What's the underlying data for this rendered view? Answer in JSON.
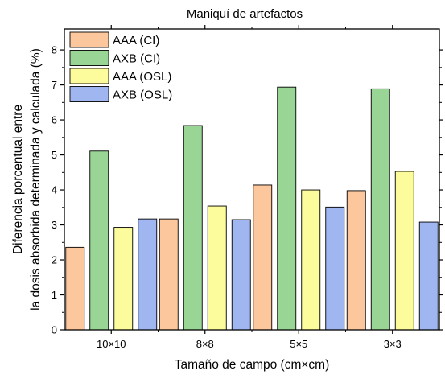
{
  "chart_data": {
    "type": "bar",
    "title": "Maniquí  de artefactos",
    "xlabel": "Tamaño de campo (cm×cm)",
    "ylabel": [
      "Diferencia porcentual entre",
      "la dosis absorbida determinada y calculada (%)"
    ],
    "categories": [
      "10×10",
      "8×8",
      "5×5",
      "3×3"
    ],
    "ylim": [
      0,
      8.6
    ],
    "yticks": [
      0,
      1,
      2,
      3,
      4,
      5,
      6,
      7,
      8
    ],
    "grid": false,
    "legend_position": "top-left",
    "series": [
      {
        "name": "AAA (CI)",
        "color": "#fcc79c",
        "values": [
          2.36,
          3.17,
          4.14,
          3.98
        ]
      },
      {
        "name": "AXB (CI)",
        "color": "#99d595",
        "values": [
          5.11,
          5.84,
          6.94,
          6.89
        ]
      },
      {
        "name": "AAA (OSL)",
        "color": "#fdfc9c",
        "values": [
          2.93,
          3.54,
          4.0,
          4.53
        ]
      },
      {
        "name": "AXB (OSL)",
        "color": "#a0b6f0",
        "values": [
          3.17,
          3.15,
          3.51,
          3.08
        ]
      }
    ]
  }
}
